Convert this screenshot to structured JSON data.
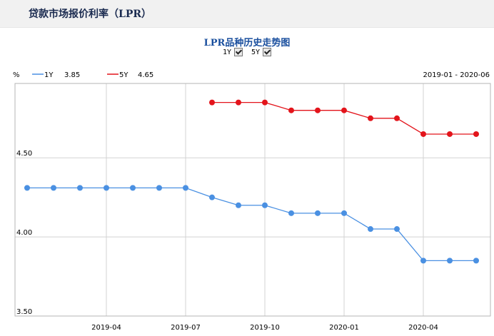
{
  "page": {
    "title": "贷款市场报价利率（LPR）"
  },
  "toggles": [
    {
      "label": "1Y",
      "checked": true
    },
    {
      "label": "5Y",
      "checked": true
    }
  ],
  "chart_data": {
    "type": "line",
    "title": "LPR品种历史走势图",
    "unit_label": "%",
    "range_label": "2019-01 - 2020-06",
    "x": [
      "2019-01",
      "2019-02",
      "2019-03",
      "2019-04",
      "2019-05",
      "2019-06",
      "2019-07",
      "2019-08",
      "2019-09",
      "2019-10",
      "2019-11",
      "2019-12",
      "2020-01",
      "2020-02",
      "2020-03",
      "2020-04",
      "2020-05",
      "2020-06"
    ],
    "x_ticks": [
      "2019-04",
      "2019-07",
      "2019-10",
      "2020-01",
      "2020-04"
    ],
    "y_ticks": [
      "4.50",
      "4.00",
      "3.50"
    ],
    "ylim": [
      3.5,
      4.97
    ],
    "grid": true,
    "legend_position": "top-left",
    "series": [
      {
        "name": "1Y",
        "last_value": "3.85",
        "color": "#4a90e2",
        "values": [
          4.31,
          4.31,
          4.31,
          4.31,
          4.31,
          4.31,
          4.31,
          4.25,
          4.2,
          4.2,
          4.15,
          4.15,
          4.15,
          4.05,
          4.05,
          3.85,
          3.85,
          3.85
        ]
      },
      {
        "name": "5Y",
        "last_value": "4.65",
        "color": "#e3141b",
        "values": [
          null,
          null,
          null,
          null,
          null,
          null,
          null,
          4.85,
          4.85,
          4.85,
          4.8,
          4.8,
          4.8,
          4.75,
          4.75,
          4.65,
          4.65,
          4.65
        ]
      }
    ]
  }
}
